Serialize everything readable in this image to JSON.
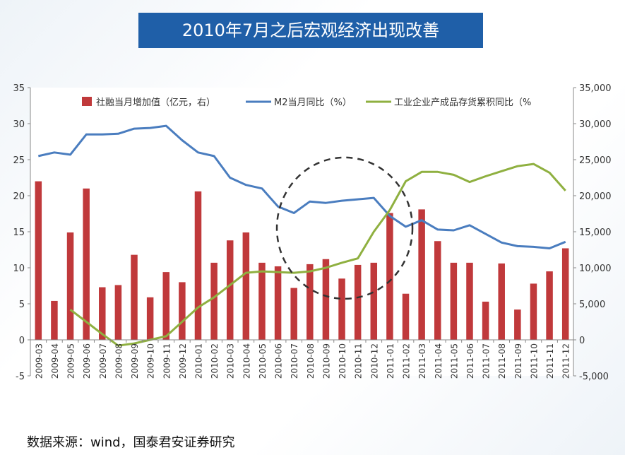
{
  "page": {
    "title": "2010年7月之后宏观经济出现改善",
    "source": "数据来源：wind，国泰君安证券研究"
  },
  "colors": {
    "bar": "#c0393b",
    "m2": "#4a7dbf",
    "inventory": "#8fb040",
    "title_bg": "#1f5fa8",
    "circle": "#333333"
  },
  "chart_data": {
    "type": "bar+line",
    "categories": [
      "2009-03",
      "2009-04",
      "2009-05",
      "2009-06",
      "2009-07",
      "2009-08",
      "2009-09",
      "2009-10",
      "2009-11",
      "2009-12",
      "2010-01",
      "2010-02",
      "2010-03",
      "2010-04",
      "2010-05",
      "2010-06",
      "2010-07",
      "2010-08",
      "2010-09",
      "2010-10",
      "2010-11",
      "2010-12",
      "2011-01",
      "2011-02",
      "2011-03",
      "2011-04",
      "2011-05",
      "2011-06",
      "2011-07",
      "2011-08",
      "2011-09",
      "2011-10",
      "2011-11",
      "2011-12"
    ],
    "left_axis": {
      "min": -5,
      "max": 35,
      "ticks": [
        35,
        30,
        25,
        20,
        15,
        10,
        5,
        0,
        -5
      ],
      "tick_labels": [
        "35",
        "30",
        "25",
        "20",
        "15",
        "10",
        "5",
        "0",
        "-5"
      ]
    },
    "right_axis": {
      "min": -5000,
      "max": 35000,
      "ticks": [
        35000,
        30000,
        25000,
        20000,
        15000,
        10000,
        5000,
        0,
        -5000
      ],
      "tick_labels": [
        "35,000",
        "30,000",
        "25,000",
        "20,000",
        "15,000",
        "10,000",
        "5,000",
        "0",
        "-5,000"
      ]
    },
    "legend": {
      "position": "top"
    },
    "series": [
      {
        "name": "社融当月增加值（亿元，右）",
        "kind": "bar",
        "axis": "right",
        "values": [
          22000,
          5400,
          14900,
          21000,
          7300,
          7600,
          11800,
          5900,
          9400,
          8000,
          20600,
          10700,
          13800,
          14900,
          10700,
          10200,
          7200,
          10500,
          11200,
          8500,
          10400,
          10700,
          17600,
          6400,
          18100,
          13700,
          10700,
          10700,
          5300,
          10600,
          4200,
          7800,
          9500,
          12700
        ]
      },
      {
        "name": "M2当月同比（%）",
        "kind": "line",
        "axis": "left",
        "values": [
          25.5,
          26.0,
          25.7,
          28.5,
          28.5,
          28.6,
          29.3,
          29.4,
          29.7,
          27.7,
          26.0,
          25.5,
          22.5,
          21.5,
          21.0,
          18.5,
          17.6,
          19.2,
          19.0,
          19.3,
          19.5,
          19.7,
          17.2,
          15.7,
          16.6,
          15.3,
          15.2,
          15.9,
          14.7,
          13.5,
          13.0,
          12.9,
          12.7,
          13.6
        ]
      },
      {
        "name": "工业企业产成品存货累积同比（%",
        "kind": "line",
        "axis": "left",
        "values": [
          null,
          null,
          4.2,
          2.5,
          0.8,
          -0.8,
          -0.5,
          0,
          0.5,
          2.5,
          4.5,
          5.9,
          7.6,
          9.3,
          9.5,
          9.4,
          9.3,
          9.5,
          10.0,
          10.7,
          11.3,
          15.0,
          18.0,
          22.0,
          23.3,
          23.3,
          22.9,
          21.9,
          22.7,
          23.4,
          24.1,
          24.4,
          23.2,
          20.7
        ]
      }
    ]
  }
}
